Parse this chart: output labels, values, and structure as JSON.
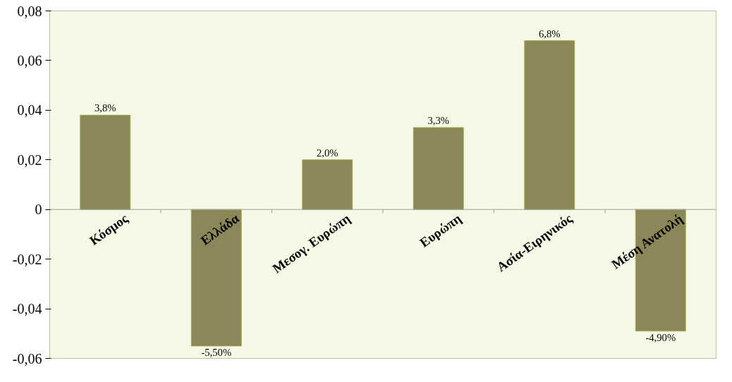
{
  "chart_data": {
    "type": "bar",
    "categories": [
      "Κόσμος",
      "Ελλάδα",
      "Μεσογ. Ευρώπη",
      "Ευρώπη",
      "Ασία-Ειρηνικός",
      "Μέση Ανατολή"
    ],
    "values": [
      0.038,
      -0.055,
      0.02,
      0.033,
      0.068,
      -0.049
    ],
    "value_labels": [
      "3,8%",
      "-5,50%",
      "2,0%",
      "3,3%",
      "6,8%",
      "-4,90%"
    ],
    "color": "#8c8758",
    "ylim": [
      -0.06,
      0.08
    ],
    "yticks": [
      {
        "value": -0.06,
        "label": "-0,06"
      },
      {
        "value": -0.04,
        "label": "-0,04"
      },
      {
        "value": -0.02,
        "label": "-0,02"
      },
      0,
      {
        "value": 0.02,
        "label": "0,02"
      },
      {
        "value": 0.04,
        "label": "0,04"
      },
      {
        "value": 0.06,
        "label": "0,06"
      },
      {
        "value": 0.08,
        "label": "0,08"
      }
    ],
    "grid": false
  }
}
